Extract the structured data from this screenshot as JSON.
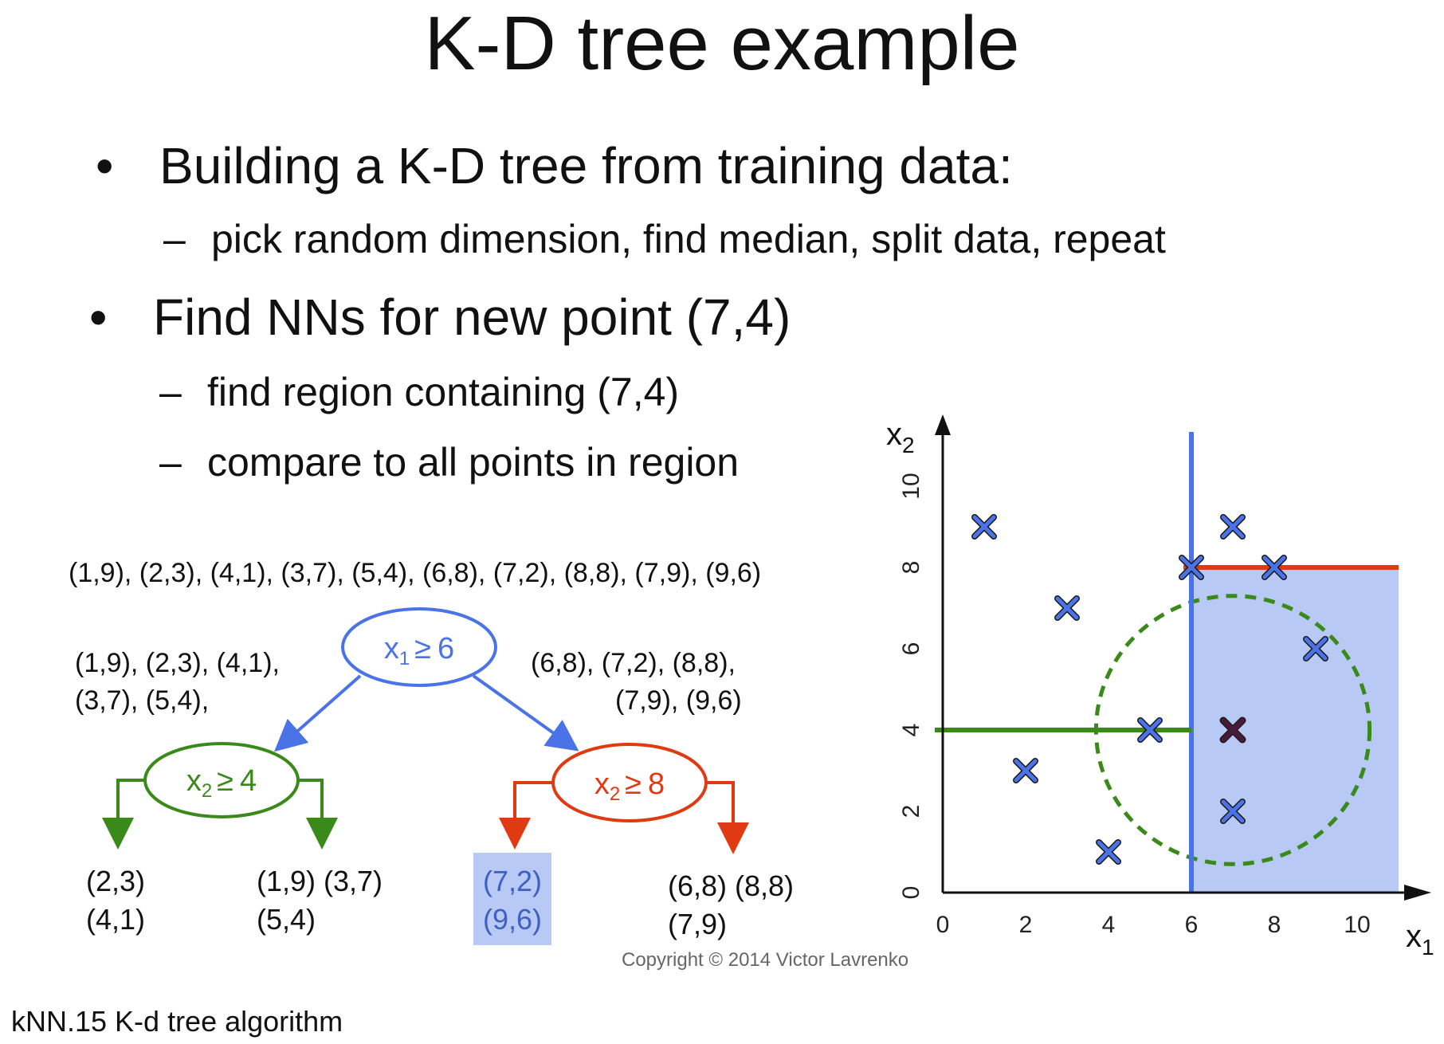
{
  "slide": {
    "title": "K-D tree example",
    "bullets": [
      {
        "text": "Building a K-D tree from training data:",
        "sub": [
          "pick random dimension, find median, split data, repeat"
        ]
      },
      {
        "text": "Find NNs for new point (7,4)",
        "sub": [
          "find region containing (7,4)",
          "compare to all points in region"
        ]
      }
    ],
    "bullet_glyph": "•",
    "dash_glyph": "–",
    "copyright": "Copyright © 2014 Victor Lavrenko",
    "caption": "kNN.15 K-d tree algorithm"
  },
  "tree": {
    "all_points": "(1,9), (2,3), (4,1), (3,7), (5,4), (6,8), (7,2), (8,8), (7,9), (9,6)",
    "left_set_line1": "(1,9), (2,3), (4,1),",
    "left_set_line2": "(3,7), (5,4),",
    "right_set_line1": "(6,8), (7,2), (8,8),",
    "right_set_line2": "(7,9), (9,6)",
    "root": {
      "var": "x",
      "sub": "1",
      "op": "≥",
      "val": "6"
    },
    "left_node": {
      "var": "x",
      "sub": "2",
      "op": "≥",
      "val": "4"
    },
    "right_node": {
      "var": "x",
      "sub": "2",
      "op": "≥",
      "val": "8"
    },
    "leaves": [
      {
        "line1": "(2,3)",
        "line2": "(4,1)"
      },
      {
        "line1": "(1,9) (3,7)",
        "line2": "(5,4)"
      },
      {
        "line1": "(7,2)",
        "line2": "(9,6)",
        "highlighted": true
      },
      {
        "line1": "(6,8) (8,8)",
        "line2": "(7,9)"
      }
    ],
    "colors": {
      "root": "#4a73e8",
      "left": "#3a8a1a",
      "right": "#e03a12",
      "leaf_highlight": "#b9c9f5",
      "text": "#111111"
    }
  },
  "chart_data": {
    "type": "scatter",
    "xlabel": "x",
    "xlabel_sub": "1",
    "ylabel": "x",
    "ylabel_sub": "2",
    "xticks": [
      "0",
      "2",
      "4",
      "6",
      "8",
      "10"
    ],
    "yticks": [
      "0",
      "2",
      "4",
      "6",
      "8",
      "10"
    ],
    "points": [
      {
        "x": 1,
        "y": 9
      },
      {
        "x": 2,
        "y": 3
      },
      {
        "x": 4,
        "y": 1
      },
      {
        "x": 3,
        "y": 7
      },
      {
        "x": 5,
        "y": 4
      },
      {
        "x": 6,
        "y": 8
      },
      {
        "x": 7,
        "y": 2
      },
      {
        "x": 8,
        "y": 8
      },
      {
        "x": 7,
        "y": 9
      },
      {
        "x": 9,
        "y": 6
      }
    ],
    "query_point": {
      "x": 7,
      "y": 4
    },
    "splits": [
      {
        "axis": "x",
        "value": 6,
        "color": "#4a73e8"
      },
      {
        "axis": "y",
        "value": 4,
        "x_range": [
          0,
          6
        ],
        "color": "#3a8a1a"
      },
      {
        "axis": "y",
        "value": 8,
        "x_range": [
          6,
          11
        ],
        "color": "#e03a12"
      }
    ],
    "highlight_region": {
      "x_range": [
        6,
        11
      ],
      "y_range": [
        0,
        8
      ],
      "color": "#b9c9f5"
    },
    "search_circle": {
      "cx": 7,
      "cy": 4,
      "r": 3.3,
      "color": "#3a8a1a"
    },
    "point_color": "#4a73e8",
    "query_color": "#4a1a3a",
    "grid": false
  }
}
